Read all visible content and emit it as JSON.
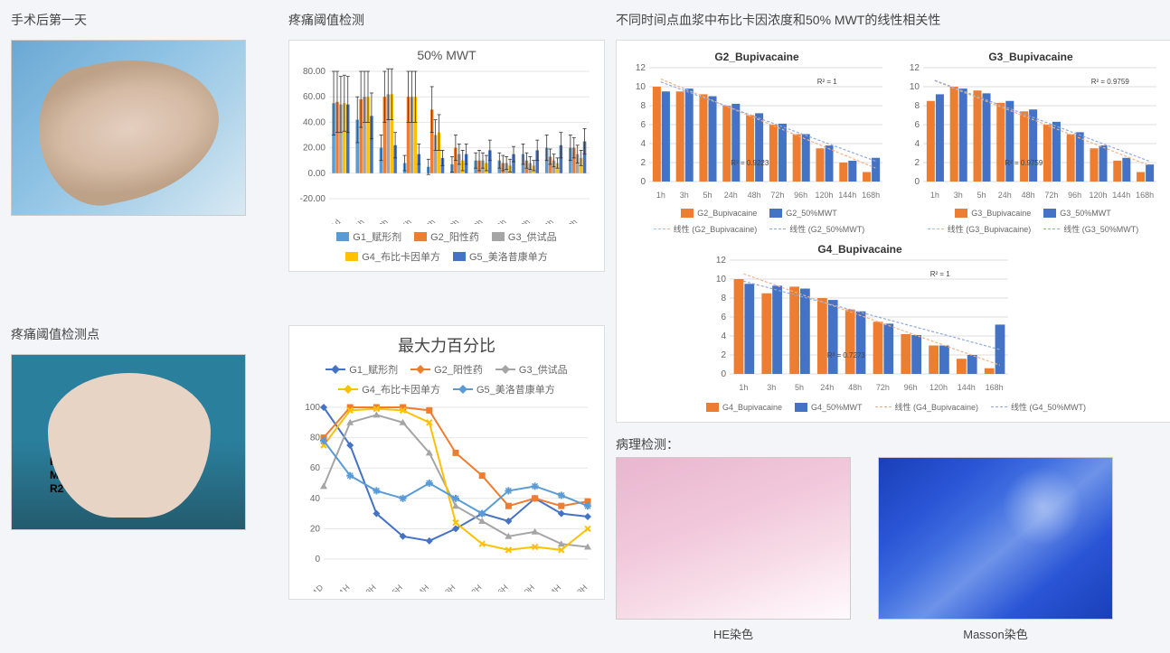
{
  "titles": {
    "top_left": "手术后第一天",
    "top_mid": "疼痛阈值检测",
    "mid_left": "疼痛阈值检测点",
    "right_top": "不同时间点血浆中布比卡因浓度和50% MWT的线性相关性",
    "pathology": "病理检测：",
    "he": "HE染色",
    "masson": "Masson染色"
  },
  "mwt_chart": {
    "title": "50% MWT",
    "ylim": [
      -20,
      80
    ],
    "ytick_step": 20,
    "yticks": [
      -20,
      0,
      20,
      40,
      60,
      80
    ],
    "categories": [
      "术前1d",
      "1h",
      "3h",
      "5h",
      "24h",
      "48h",
      "72h",
      "96h",
      "120h",
      "144h",
      "168h"
    ],
    "grid_color": "#e6e6e6",
    "background": "#ffffff",
    "series": [
      {
        "label": "G1_赋形剂",
        "color": "#5b9bd5",
        "values": [
          55,
          42,
          20,
          8,
          5,
          7,
          10,
          10,
          15,
          20,
          20
        ],
        "err": [
          25,
          18,
          10,
          6,
          6,
          6,
          6,
          6,
          8,
          10,
          10
        ]
      },
      {
        "label": "G2_阳性药",
        "color": "#ed7d31",
        "values": [
          56,
          58,
          60,
          60,
          50,
          20,
          10,
          8,
          10,
          13,
          20
        ],
        "err": [
          24,
          22,
          20,
          20,
          18,
          10,
          8,
          6,
          6,
          6,
          8
        ]
      },
      {
        "label": "G3_供试品",
        "color": "#a5a5a5",
        "values": [
          54,
          60,
          62,
          60,
          30,
          15,
          10,
          8,
          8,
          10,
          15
        ],
        "err": [
          22,
          20,
          20,
          20,
          12,
          8,
          6,
          5,
          5,
          5,
          7
        ]
      },
      {
        "label": "G4_布比卡因单方",
        "color": "#ffc000",
        "values": [
          55,
          60,
          62,
          60,
          32,
          10,
          8,
          6,
          6,
          8,
          12
        ],
        "err": [
          22,
          20,
          20,
          20,
          14,
          8,
          6,
          5,
          4,
          4,
          6
        ]
      },
      {
        "label": "G5_美洛昔康单方",
        "color": "#4472c4",
        "values": [
          54,
          45,
          22,
          15,
          12,
          15,
          18,
          15,
          18,
          22,
          25
        ],
        "err": [
          22,
          18,
          10,
          8,
          6,
          8,
          8,
          6,
          8,
          10,
          10
        ]
      }
    ]
  },
  "max_force_chart": {
    "title": "最大力百分比",
    "ylim": [
      0,
      100
    ],
    "ytick_step": 20,
    "yticks": [
      0,
      20,
      40,
      60,
      80,
      100
    ],
    "categories": [
      "术前1D",
      "1H",
      "3H",
      "5H",
      "24H",
      "48H",
      "72H",
      "96H",
      "120H",
      "144H",
      "168H"
    ],
    "grid_color": "#e6e6e6",
    "background": "#ffffff",
    "series": [
      {
        "label": "G1_赋形剂",
        "color": "#4472c4",
        "marker": "diamond",
        "values": [
          100,
          75,
          30,
          15,
          12,
          20,
          30,
          25,
          40,
          30,
          28
        ]
      },
      {
        "label": "G2_阳性药",
        "color": "#ed7d31",
        "marker": "square",
        "values": [
          80,
          100,
          100,
          100,
          98,
          70,
          55,
          35,
          40,
          35,
          38
        ]
      },
      {
        "label": "G3_供试品",
        "color": "#a5a5a5",
        "marker": "triangle",
        "values": [
          48,
          90,
          95,
          90,
          70,
          35,
          25,
          15,
          18,
          10,
          8
        ]
      },
      {
        "label": "G4_布比卡因单方",
        "color": "#ffc000",
        "marker": "x",
        "values": [
          75,
          98,
          99,
          98,
          90,
          24,
          10,
          6,
          8,
          6,
          20
        ]
      },
      {
        "label": "G5_美洛昔康单方",
        "color": "#5b9bd5",
        "marker": "star",
        "values": [
          78,
          55,
          45,
          40,
          50,
          40,
          30,
          45,
          48,
          42,
          35
        ]
      }
    ]
  },
  "corr_charts": {
    "grid_color": "#dcdcdc",
    "ylim": [
      0,
      12
    ],
    "ytick_step": 2,
    "yticks": [
      0,
      2,
      4,
      6,
      8,
      10,
      12
    ],
    "categories": [
      "1h",
      "3h",
      "5h",
      "24h",
      "48h",
      "72h",
      "96h",
      "120h",
      "144h",
      "168h"
    ],
    "orange": "#ed7d31",
    "blue": "#4472c4",
    "trend_orange": "#f4b183",
    "trend_blue": "#8faadc",
    "g2": {
      "title": "G2_Bupivacaine",
      "bup": [
        10,
        9.5,
        9.2,
        8,
        7,
        6,
        5,
        3.5,
        2,
        1
      ],
      "mwt": [
        9.5,
        9.8,
        9,
        8.2,
        7.2,
        6.1,
        5,
        3.8,
        2.2,
        2.5
      ],
      "r2a": "R² = 1",
      "r2b": "R² = 0.9223",
      "legend_a": "G2_Bupivacaine",
      "legend_b": "G2_50%MWT",
      "legend_c": "线性 (G2_Bupivacaine)",
      "legend_d": "线性 (G2_50%MWT)"
    },
    "g3": {
      "title": "G3_Bupivacaine",
      "bup": [
        8.5,
        10,
        9.6,
        8.3,
        7.4,
        6,
        5,
        3.5,
        2.2,
        1
      ],
      "mwt": [
        9.2,
        9.8,
        9.3,
        8.5,
        7.6,
        6.3,
        5.2,
        3.8,
        2.5,
        1.8
      ],
      "r2a": "R² = 0.9759",
      "r2b": "R² = 0.9759",
      "legend_a": "G3_Bupivacaine",
      "legend_b": "G3_50%MWT",
      "legend_c": "线性 (G3_Bupivacaine)",
      "legend_d": "线性 (G3_50%MWT)"
    },
    "g4": {
      "title": "G4_Bupivacaine",
      "bup": [
        10,
        8.5,
        9.2,
        8,
        6.8,
        5.5,
        4.2,
        3,
        1.6,
        0.6
      ],
      "mwt": [
        9.5,
        9.3,
        9,
        7.8,
        6.6,
        5.3,
        4.1,
        3,
        2,
        5.2
      ],
      "r2a": "R² = 1",
      "r2b": "R² = 0.7273",
      "legend_a": "G4_Bupivacaine",
      "legend_b": "G4_50%MWT",
      "legend_c": "线性 (G4_Bupivacaine)",
      "legend_d": "线性 (G4_50%MWT)"
    }
  }
}
